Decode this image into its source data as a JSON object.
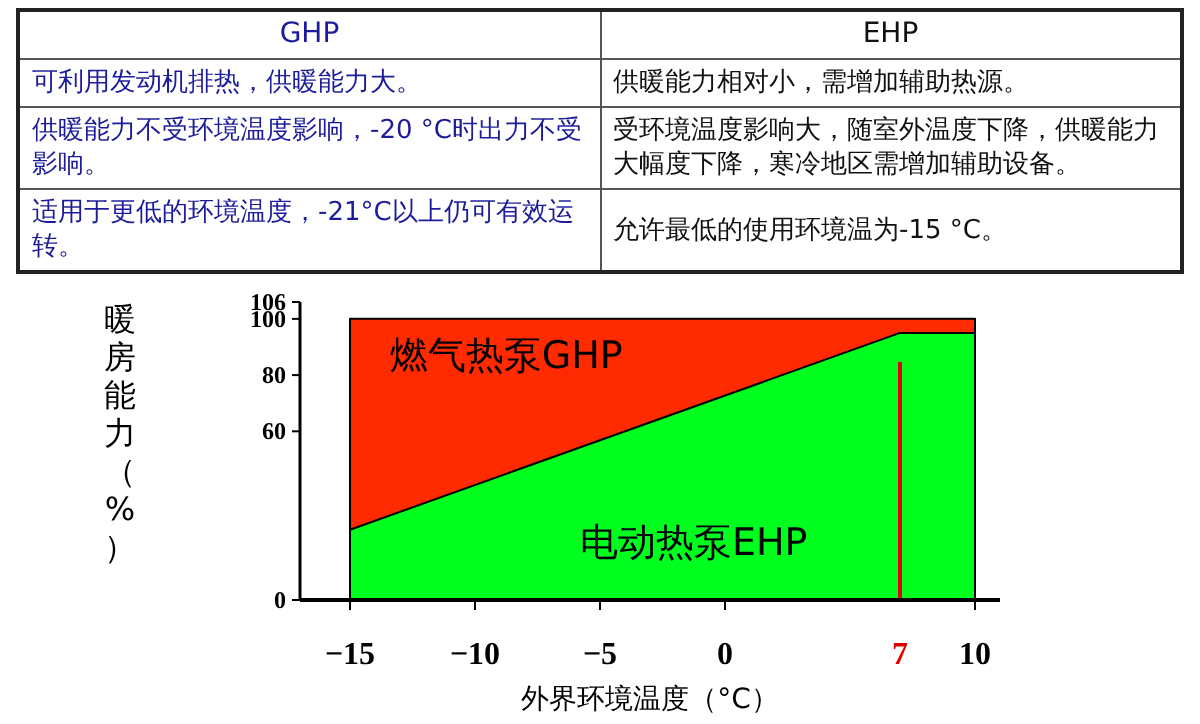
{
  "chart_data": [
    {
      "type": "other",
      "categories": [
        "GHP",
        "EHP"
      ],
      "annotations": [
        "可利用发动机排热，供暖能力大。",
        "供暖能力相对小，需增加辅助热源。",
        "供暖能力不受环境温度影响，-20 °C时出力不受影响。",
        "受环境温度影响大，随室外温度下降，供暖能力大幅度下降，寒冷地区需增加辅助设备。",
        "适用于更低的环境温度，-21°C以上仍可有效运转。",
        "允许最低的使用环境温为-15 °C。"
      ],
      "colors": [
        "#1c1c9a",
        "#111111"
      ]
    },
    {
      "type": "area",
      "xlabel": "外界环境温度（°C）",
      "ylabel": "暖房能力（%）",
      "xlim": [
        -17,
        11
      ],
      "ylim": [
        0,
        106
      ],
      "xticks": [
        -15,
        -10,
        -5,
        0,
        10
      ],
      "yticks": [
        0,
        60,
        80,
        100,
        106
      ],
      "series": [
        {
          "name": "燃气热泵GHP",
          "color": "#ff2a00",
          "x": [
            -15,
            10
          ],
          "values": [
            100,
            100
          ]
        },
        {
          "name": "电动热泵EHP",
          "color": "#00ff1e",
          "x": [
            -15,
            7,
            10
          ],
          "values": [
            25,
            95,
            95
          ]
        }
      ],
      "ref_lines": [
        {
          "axis": "x",
          "value": 7,
          "label": "7",
          "color": "#e00000"
        }
      ]
    }
  ]
}
